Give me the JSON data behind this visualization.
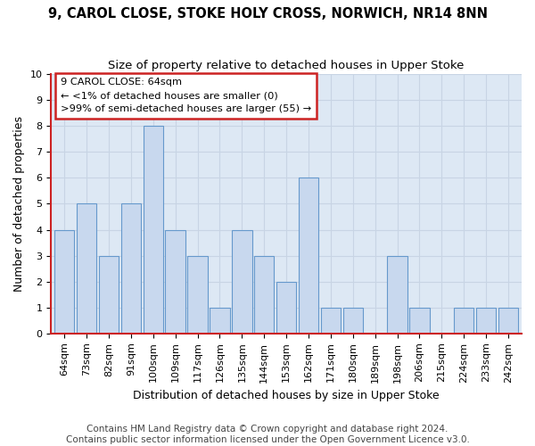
{
  "title1": "9, CAROL CLOSE, STOKE HOLY CROSS, NORWICH, NR14 8NN",
  "title2": "Size of property relative to detached houses in Upper Stoke",
  "xlabel": "Distribution of detached houses by size in Upper Stoke",
  "ylabel": "Number of detached properties",
  "categories": [
    "64sqm",
    "73sqm",
    "82sqm",
    "91sqm",
    "100sqm",
    "109sqm",
    "117sqm",
    "126sqm",
    "135sqm",
    "144sqm",
    "153sqm",
    "162sqm",
    "171sqm",
    "180sqm",
    "189sqm",
    "198sqm",
    "206sqm",
    "215sqm",
    "224sqm",
    "233sqm",
    "242sqm"
  ],
  "values": [
    4,
    5,
    3,
    5,
    8,
    4,
    3,
    1,
    4,
    3,
    2,
    6,
    1,
    1,
    0,
    3,
    1,
    0,
    1,
    1,
    1
  ],
  "bar_color": "#c8d8ee",
  "bar_edge_color": "#6699cc",
  "highlight_box_text": "9 CAROL CLOSE: 64sqm\n← <1% of detached houses are smaller (0)\n>99% of semi-detached houses are larger (55) →",
  "annotation_box_color": "#ffffff",
  "annotation_box_edge_color": "#cc2222",
  "ylim": [
    0,
    10
  ],
  "yticks": [
    0,
    1,
    2,
    3,
    4,
    5,
    6,
    7,
    8,
    9,
    10
  ],
  "grid_color": "#c8d4e4",
  "bg_color": "#dde8f4",
  "spine_color": "#cc2222",
  "footer1": "Contains HM Land Registry data © Crown copyright and database right 2024.",
  "footer2": "Contains public sector information licensed under the Open Government Licence v3.0.",
  "title_fontsize": 10.5,
  "subtitle_fontsize": 9.5,
  "axis_label_fontsize": 9,
  "tick_fontsize": 8,
  "footer_fontsize": 7.5
}
